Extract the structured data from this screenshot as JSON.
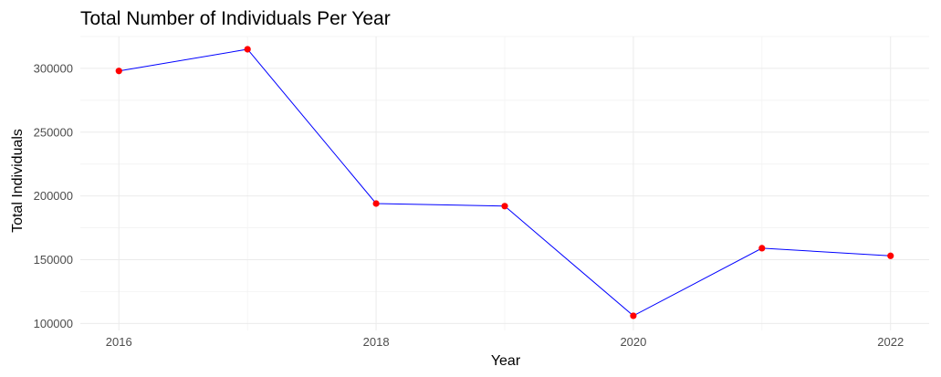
{
  "chart_data": {
    "type": "line",
    "title": "Total Number of Individuals Per Year",
    "xlabel": "Year",
    "ylabel": "Total Individuals",
    "x": [
      2016,
      2017,
      2018,
      2019,
      2020,
      2021,
      2022
    ],
    "series": [
      {
        "values": [
          298000,
          315000,
          194000,
          192000,
          106000,
          159000,
          153000
        ]
      }
    ],
    "x_ticks": [
      2016,
      2018,
      2020,
      2022
    ],
    "x_tick_labels": [
      "2016",
      "2018",
      "2020",
      "2022"
    ],
    "y_ticks": [
      100000,
      150000,
      200000,
      250000,
      300000
    ],
    "y_tick_labels": [
      "100000",
      "150000",
      "200000",
      "250000",
      "300000"
    ],
    "xlim": [
      2015.7,
      2022.3
    ],
    "ylim": [
      94500,
      325000
    ],
    "grid": true,
    "colors": {
      "line": "#0000ff",
      "points": "#ff0000",
      "grid_major": "#ebebeb",
      "grid_minor": "#f4f4f4"
    }
  }
}
